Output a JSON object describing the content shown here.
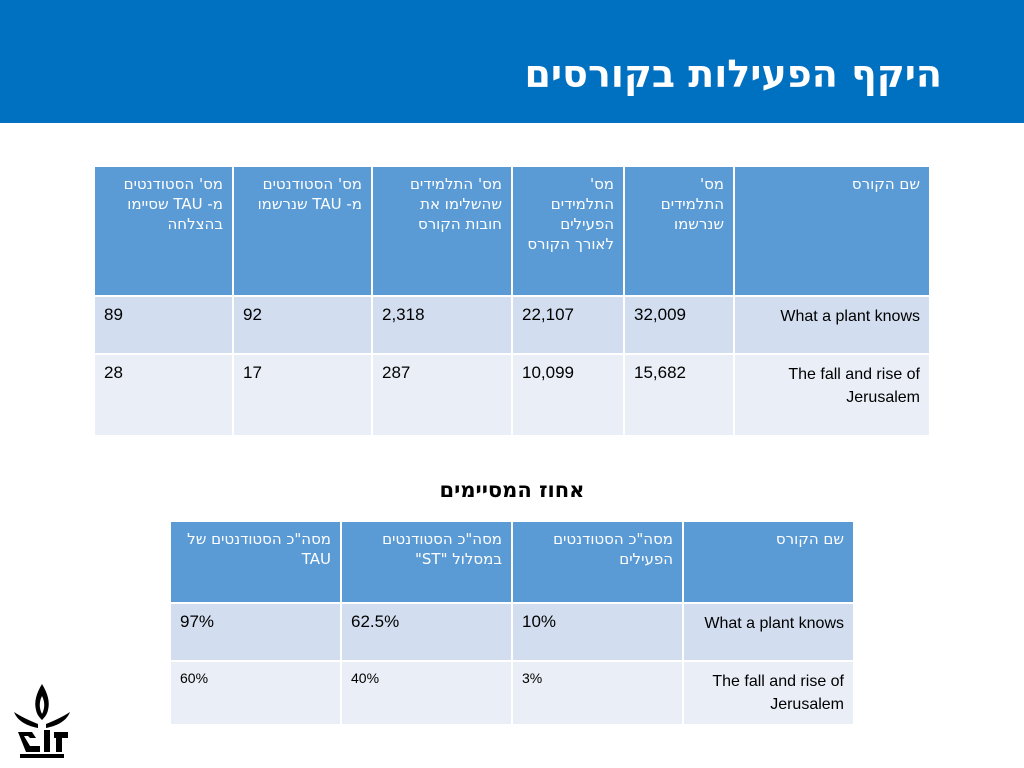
{
  "slide": {
    "title": "היקף הפעילות בקורסים",
    "subtitle": "אחוז המסיימים"
  },
  "table1": {
    "headers": [
      "שם הקורס",
      "מס' התלמידים שנרשמו",
      "מס' התלמידים הפעילים לאורך הקורס",
      "מס' התלמידים שהשלימו את חובות הקורס",
      "מס' הסטודנטים מ- TAU שנרשמו",
      "מס' הסטודנטים מ- TAU שסיימו בהצלחה"
    ],
    "rows": [
      [
        "What a plant knows",
        "32,009",
        "22,107",
        "2,318",
        "92",
        "89"
      ],
      [
        "The fall and rise of Jerusalem",
        "15,682",
        "10,099",
        "287",
        "17",
        "28"
      ]
    ]
  },
  "table2": {
    "headers": [
      "שם הקורס",
      "מסה\"כ הסטודנטים הפעילים",
      "מסה\"כ הסטודנטים במסלול \"ST\"",
      "מסה\"כ הסטודנטים של TAU"
    ],
    "rows": [
      [
        "What a plant knows",
        "10%",
        "62.5%",
        "97%"
      ],
      [
        "The fall and rise of Jerusalem",
        "3%",
        "40%",
        "60%"
      ]
    ]
  },
  "colors": {
    "header_bar": "#0070c0",
    "table_header": "#5b9bd5",
    "row_dark": "#d2deef",
    "row_light": "#eaeff7"
  },
  "logo": {
    "icon": "tel-aviv-university-logo-icon"
  }
}
